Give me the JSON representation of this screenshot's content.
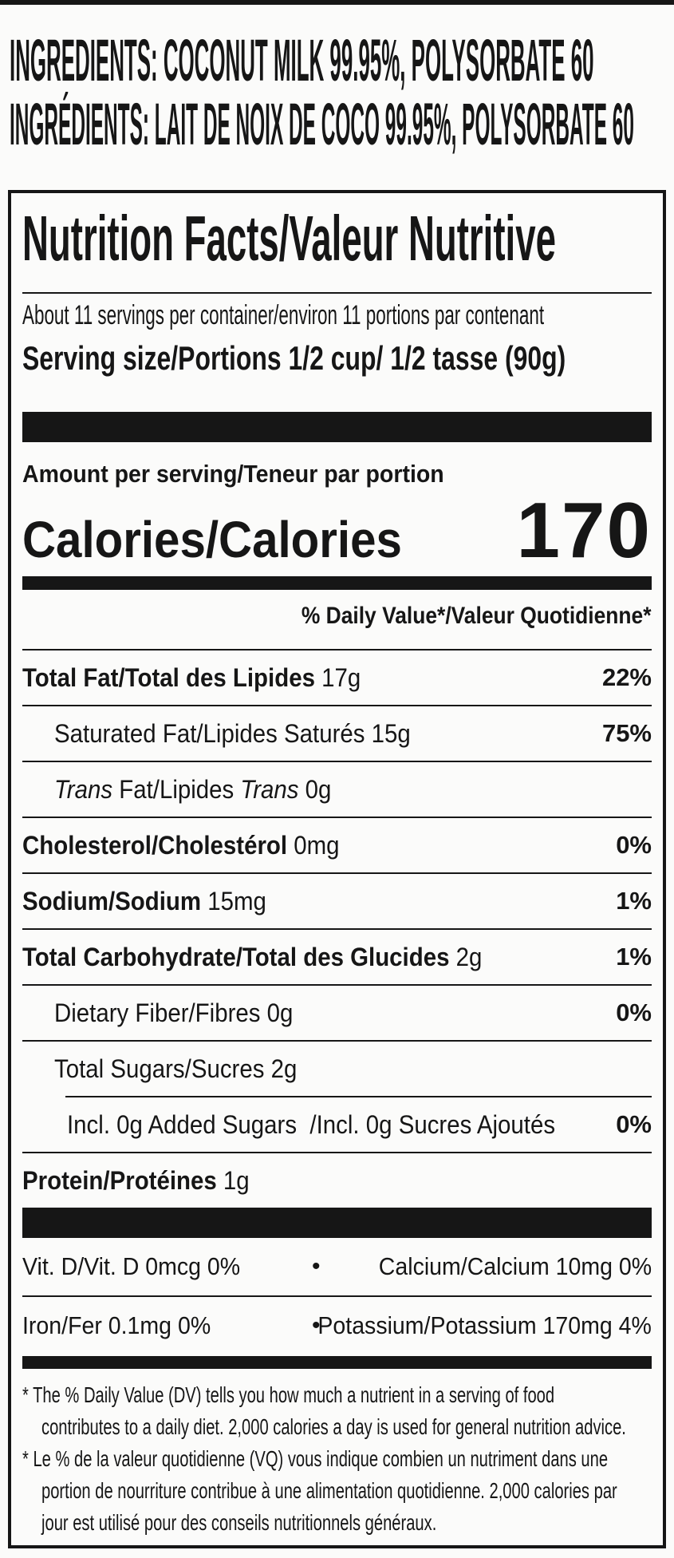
{
  "colors": {
    "ink": "#161616",
    "paper": "#fbfbfa"
  },
  "ingredients": {
    "line_en": "INGREDIENTS: COCONUT MILK 99.95%, POLYSORBATE 60",
    "line_fr": "INGRÉDIENTS: LAIT DE NOIX DE COCO 99.95%, POLYSORBATE 60"
  },
  "label": {
    "title": "Nutrition Facts/Valeur Nutritive",
    "servings_per_container": "About 11 servings per container/environ 11 portions par contenant",
    "serving_size": "Serving size/Portions 1/2 cup/ 1/2 tasse (90g)",
    "amount_per_serving": "Amount per serving/Teneur par portion",
    "calories_label": "Calories/Calories",
    "calories_value": "170",
    "daily_value_header": "% Daily Value*/Valeur Quotidienne*",
    "rows": [
      {
        "id": "total-fat",
        "indent": 0,
        "rule": "none",
        "pct": "22%",
        "parts": [
          [
            "b",
            "Total Fat/Total des Lipides"
          ],
          [
            "r",
            " 17g"
          ]
        ]
      },
      {
        "id": "saturated-fat",
        "indent": 1,
        "rule": "full",
        "pct": "75%",
        "parts": [
          [
            "r",
            "Saturated Fat/Lipides Saturés 15g"
          ]
        ]
      },
      {
        "id": "trans-fat",
        "indent": 1,
        "rule": "full",
        "pct": "",
        "parts": [
          [
            "i",
            "Trans"
          ],
          [
            "r",
            " Fat/Lipides "
          ],
          [
            "i",
            "Trans"
          ],
          [
            "r",
            " 0g"
          ]
        ]
      },
      {
        "id": "cholesterol",
        "indent": 0,
        "rule": "full",
        "pct": "0%",
        "parts": [
          [
            "b",
            "Cholesterol/Cholestérol"
          ],
          [
            "r",
            " 0mg"
          ]
        ]
      },
      {
        "id": "sodium",
        "indent": 0,
        "rule": "full",
        "pct": "1%",
        "parts": [
          [
            "b",
            "Sodium/Sodium"
          ],
          [
            "r",
            " 15mg"
          ]
        ]
      },
      {
        "id": "total-carbohydrate",
        "indent": 0,
        "rule": "full",
        "pct": "1%",
        "parts": [
          [
            "b",
            "Total Carbohydrate/Total des Glucides"
          ],
          [
            "r",
            " 2g"
          ]
        ]
      },
      {
        "id": "dietary-fiber",
        "indent": 1,
        "rule": "full",
        "pct": "0%",
        "parts": [
          [
            "r",
            "Dietary Fiber/Fibres 0g"
          ]
        ]
      },
      {
        "id": "total-sugars",
        "indent": 1,
        "rule": "full",
        "pct": "",
        "parts": [
          [
            "r",
            "Total Sugars/Sucres 2g"
          ]
        ]
      },
      {
        "id": "added-sugars",
        "indent": 2,
        "rule": "indent",
        "pct": "0%",
        "parts": [
          [
            "r",
            "Incl. 0g Added Sugars  /Incl. 0g Sucres Ajoutés"
          ]
        ]
      },
      {
        "id": "protein",
        "indent": 0,
        "rule": "full",
        "pct": "",
        "parts": [
          [
            "b",
            "Protein/Protéines"
          ],
          [
            "r",
            " 1g"
          ]
        ]
      }
    ],
    "minerals_bullet": "•",
    "minerals": [
      {
        "id": "vitamin-d-calcium",
        "left": "Vit. D/Vit. D 0mcg 0%",
        "right": "Calcium/Calcium 10mg 0%"
      },
      {
        "id": "iron-potassium",
        "left": "Iron/Fer 0.1mg 0%",
        "right": "Potassium/Potassium 170mg 4%"
      }
    ],
    "footnotes": [
      {
        "hang": true,
        "text": "* The % Daily Value (DV) tells you how much a nutrient in a serving of food"
      },
      {
        "hang": false,
        "text": "contributes to a daily diet. 2,000 calories a day is used for general nutrition advice."
      },
      {
        "hang": true,
        "text": "* Le % de la valeur quotidienne (VQ) vous indique combien un nutriment dans une"
      },
      {
        "hang": false,
        "text": "portion de nourriture contribue à une alimentation quotidienne. 2,000 calories par"
      },
      {
        "hang": false,
        "text": "jour est utilisé pour des conseils nutritionnels généraux."
      }
    ]
  }
}
